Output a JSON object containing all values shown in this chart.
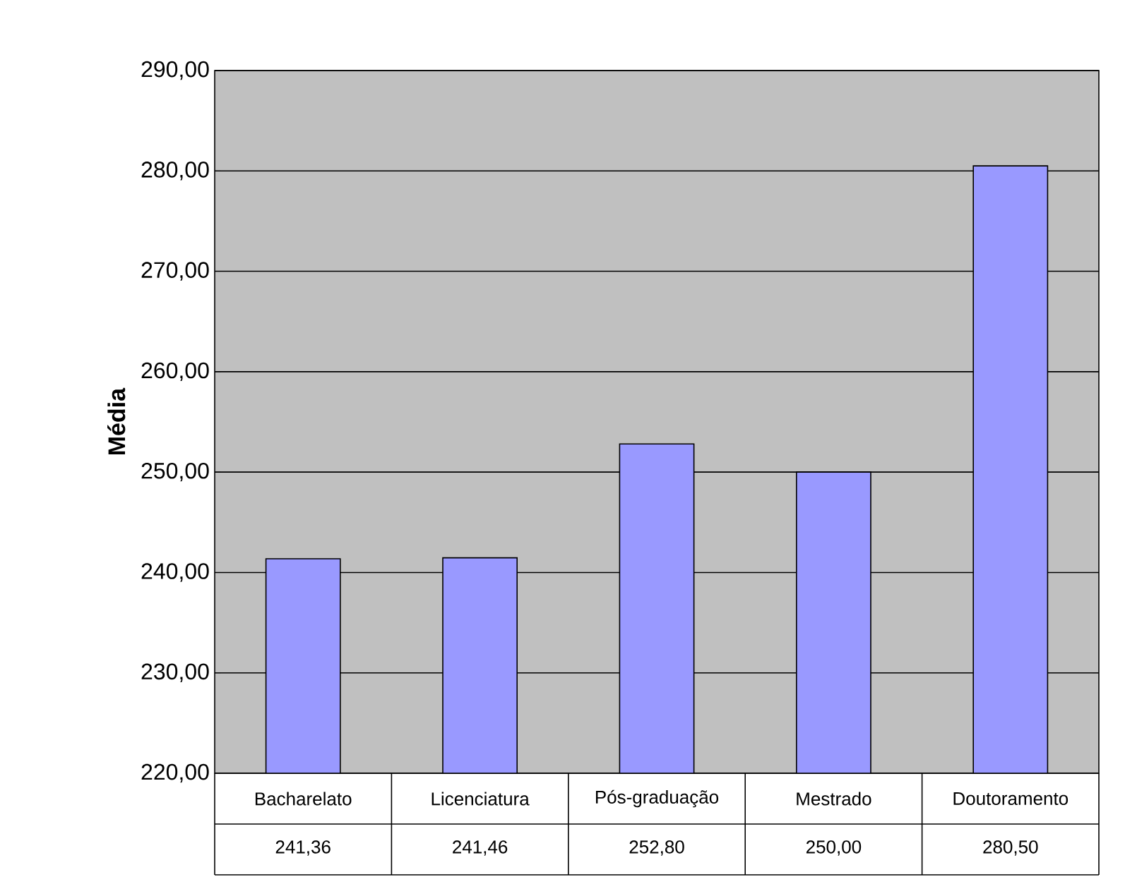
{
  "chart_data": {
    "type": "bar",
    "ylabel": "**Média**",
    "categories": [
      "Bacharelato",
      "Licenciatura",
      "Pós-graduação",
      "Mestrado",
      "Doutoramento"
    ],
    "values": [
      241.36,
      241.46,
      252.8,
      250.0,
      280.5
    ],
    "value_labels": [
      "241,36",
      "241,46",
      "252,80",
      "250,00",
      "280,50"
    ],
    "color": "#9999ff",
    "ylim": [
      220,
      290
    ],
    "yticks": [
      {
        "value": 220,
        "label": "220,00"
      },
      {
        "value": 230,
        "label": "230,00"
      },
      {
        "value": 240,
        "label": "240,00"
      },
      {
        "value": 250,
        "label": "250,00"
      },
      {
        "value": 260,
        "label": "260,00"
      },
      {
        "value": 270,
        "label": "270,00"
      },
      {
        "value": 280,
        "label": "280,00"
      },
      {
        "value": 290,
        "label": "290,00"
      }
    ],
    "grid": "y"
  }
}
